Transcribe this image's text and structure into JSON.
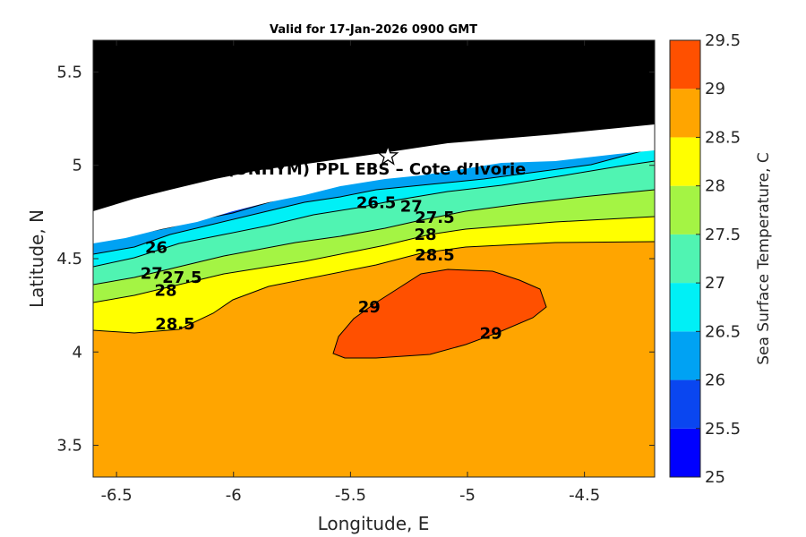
{
  "chart_data": {
    "type": "contourf",
    "title": "Valid for 17-Jan-2026 0900 GMT",
    "xlabel": "Longitude, E",
    "ylabel": "Latitude, N",
    "xlim": [
      -6.6,
      -4.2
    ],
    "ylim": [
      3.33,
      5.67
    ],
    "x_ticks": [
      -6.5,
      -6,
      -5.5,
      -5,
      -4.5
    ],
    "x_tick_labels": [
      "-6.5",
      "-6",
      "-5.5",
      "-5",
      "-4.5"
    ],
    "y_ticks": [
      3.5,
      4,
      4.5,
      5,
      5.5
    ],
    "y_tick_labels": [
      "3.5",
      "4",
      "4.5",
      "5",
      "5.5"
    ],
    "site_label": "A (ONHYM) PPL EBS  – Cote d’Ivorie",
    "site_marker": {
      "lon": -5.34,
      "lat": 5.05,
      "symbol": "star"
    },
    "colorbar": {
      "label": "Sea Surface Temperature, C",
      "levels": [
        25,
        25.5,
        26,
        26.5,
        27,
        27.5,
        28,
        28.5,
        29,
        29.5
      ],
      "tick_labels": [
        "25",
        "25.5",
        "26",
        "26.5",
        "27",
        "27.5",
        "28",
        "28.5",
        "29",
        "29.5"
      ],
      "colors": [
        "#0000ff",
        "#0a46f0",
        "#00a2f3",
        "#00f0f6",
        "#50f4b2",
        "#a4f444",
        "#ffff00",
        "#ffa500",
        "#ff5000"
      ]
    },
    "contour_labels": [
      {
        "text": "26",
        "lon": -6.33,
        "lat": 4.56
      },
      {
        "text": "26.5",
        "lon": -5.39,
        "lat": 4.8
      },
      {
        "text": "27",
        "lon": -5.24,
        "lat": 4.78
      },
      {
        "text": "27.5",
        "lon": -5.14,
        "lat": 4.72
      },
      {
        "text": "28",
        "lon": -5.18,
        "lat": 4.63
      },
      {
        "text": "28.5",
        "lon": -5.14,
        "lat": 4.52
      },
      {
        "text": "27",
        "lon": -6.35,
        "lat": 4.42
      },
      {
        "text": "27.5",
        "lon": -6.22,
        "lat": 4.4
      },
      {
        "text": "28",
        "lon": -6.29,
        "lat": 4.33
      },
      {
        "text": "28.5",
        "lon": -6.25,
        "lat": 4.15
      },
      {
        "text": "29",
        "lon": -5.42,
        "lat": 4.24
      },
      {
        "text": "29",
        "lon": -4.9,
        "lat": 4.1
      }
    ]
  }
}
